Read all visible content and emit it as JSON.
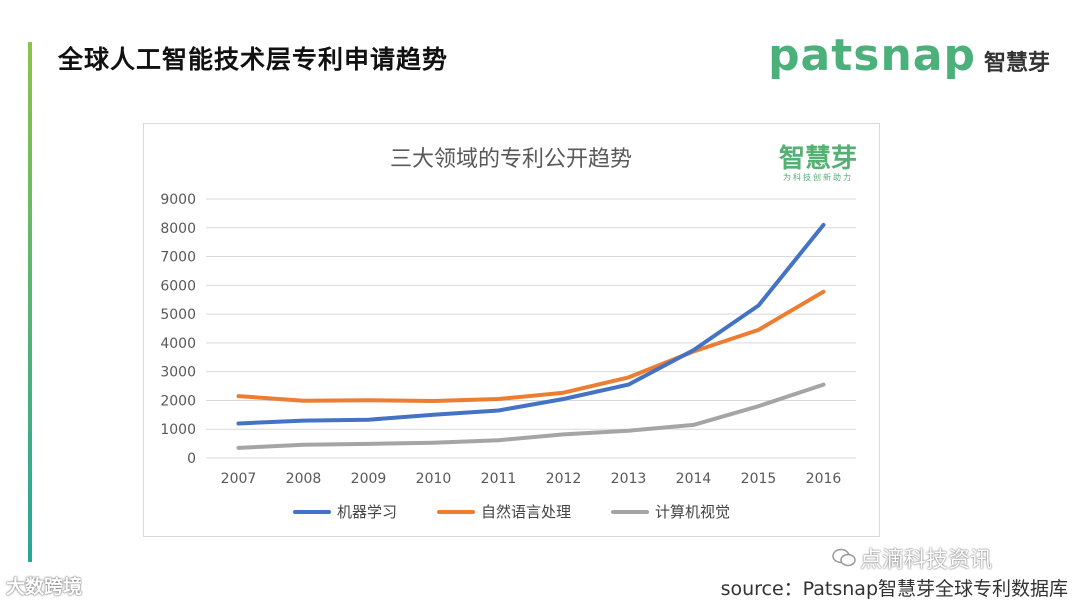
{
  "page_title": "全球人工智能技术层专利申请趋势",
  "brand": {
    "name": "patsnap",
    "cn": "智慧芽"
  },
  "chart_logo": {
    "main": "智慧芽",
    "sub": "为科技创新助力"
  },
  "watermarks": {
    "left": "大数跨境",
    "right": "点滴科技资讯"
  },
  "source": "source：Patsnap智慧芽全球专利数据库",
  "colors": {
    "ml": "#4472c4",
    "nlp": "#ed7d31",
    "cv": "#a5a5a5"
  },
  "chart_data": {
    "type": "line",
    "title": "三大领域的专利公开趋势",
    "categories": [
      "2007",
      "2008",
      "2009",
      "2010",
      "2011",
      "2012",
      "2013",
      "2014",
      "2015",
      "2016"
    ],
    "series": [
      {
        "name": "机器学习",
        "color": "#4472c4",
        "values": [
          1200,
          1300,
          1330,
          1500,
          1650,
          2050,
          2550,
          3750,
          5300,
          8100
        ]
      },
      {
        "name": "自然语言处理",
        "color": "#ed7d31",
        "values": [
          2150,
          1990,
          2010,
          1980,
          2050,
          2270,
          2800,
          3700,
          4450,
          5780
        ]
      },
      {
        "name": "计算机视觉",
        "color": "#a5a5a5",
        "values": [
          350,
          460,
          490,
          530,
          620,
          820,
          950,
          1150,
          1800,
          2550
        ]
      }
    ],
    "yticks": [
      "0",
      "1000",
      "2000",
      "3000",
      "4000",
      "5000",
      "6000",
      "7000",
      "8000",
      "9000"
    ],
    "ylim": [
      0,
      9000
    ],
    "xlabel": "",
    "ylabel": "",
    "legend": "bottom",
    "grid": true
  }
}
